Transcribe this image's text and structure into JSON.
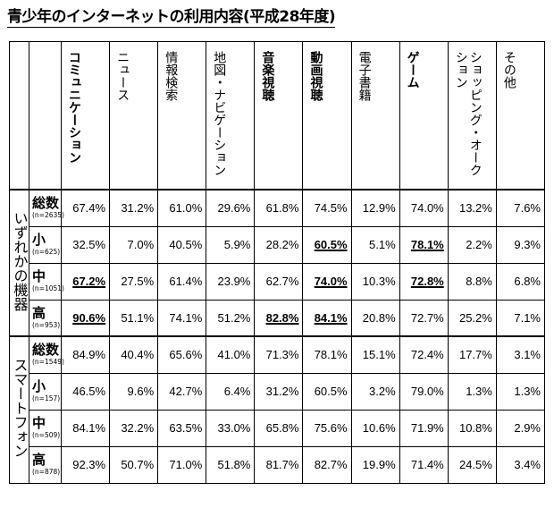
{
  "title": "青少年のインターネットの利用内容(平成28年度)",
  "columns": [
    {
      "label": "コミュニケーション",
      "bold": true
    },
    {
      "label": "ニュース",
      "bold": false
    },
    {
      "label": "情報検索",
      "bold": false
    },
    {
      "label": "地図・ナビゲーション",
      "bold": false
    },
    {
      "label": "音楽視聴",
      "bold": true
    },
    {
      "label": "動画視聴",
      "bold": true
    },
    {
      "label": "電子書籍",
      "bold": false
    },
    {
      "label": "ゲーム",
      "bold": true
    },
    {
      "label": "ショッピング・オークション",
      "bold": false
    },
    {
      "label": "その他",
      "bold": false
    }
  ],
  "groups": [
    {
      "label": "いずれかの機器",
      "rows": [
        {
          "label": "総数",
          "n": "(n=2635)",
          "values": [
            "67.4%",
            "31.2%",
            "61.0%",
            "29.6%",
            "61.8%",
            "74.5%",
            "12.9%",
            "74.0%",
            "13.2%",
            "7.6%"
          ],
          "highlight": []
        },
        {
          "label": "小",
          "n": "(n=625)",
          "values": [
            "32.5%",
            "7.0%",
            "40.5%",
            "5.9%",
            "28.2%",
            "60.5%",
            "5.1%",
            "78.1%",
            "2.2%",
            "9.3%"
          ],
          "highlight": [
            5,
            7
          ]
        },
        {
          "label": "中",
          "n": "(n=1051)",
          "values": [
            "67.2%",
            "27.5%",
            "61.4%",
            "23.9%",
            "62.7%",
            "74.0%",
            "10.3%",
            "72.8%",
            "8.8%",
            "6.8%"
          ],
          "highlight": [
            0,
            5,
            7
          ]
        },
        {
          "label": "高",
          "n": "(n=953)",
          "values": [
            "90.6%",
            "51.1%",
            "74.1%",
            "51.2%",
            "82.8%",
            "84.1%",
            "20.8%",
            "72.7%",
            "25.2%",
            "7.1%"
          ],
          "highlight": [
            0,
            4,
            5
          ]
        }
      ]
    },
    {
      "label": "スマートフォン",
      "rows": [
        {
          "label": "総数",
          "n": "(n=1549)",
          "values": [
            "84.9%",
            "40.4%",
            "65.6%",
            "41.0%",
            "71.3%",
            "78.1%",
            "15.1%",
            "72.4%",
            "17.7%",
            "3.1%"
          ],
          "highlight": []
        },
        {
          "label": "小",
          "n": "(n=157)",
          "values": [
            "46.5%",
            "9.6%",
            "42.7%",
            "6.4%",
            "31.2%",
            "60.5%",
            "3.2%",
            "79.0%",
            "1.3%",
            "1.3%"
          ],
          "highlight": []
        },
        {
          "label": "中",
          "n": "(n=509)",
          "values": [
            "84.1%",
            "32.2%",
            "63.5%",
            "33.0%",
            "65.8%",
            "75.6%",
            "10.6%",
            "71.9%",
            "10.8%",
            "2.9%"
          ],
          "highlight": []
        },
        {
          "label": "高",
          "n": "(n=878)",
          "values": [
            "92.3%",
            "50.7%",
            "71.0%",
            "51.8%",
            "81.7%",
            "82.7%",
            "19.9%",
            "71.4%",
            "24.5%",
            "3.4%"
          ],
          "highlight": []
        }
      ]
    }
  ]
}
